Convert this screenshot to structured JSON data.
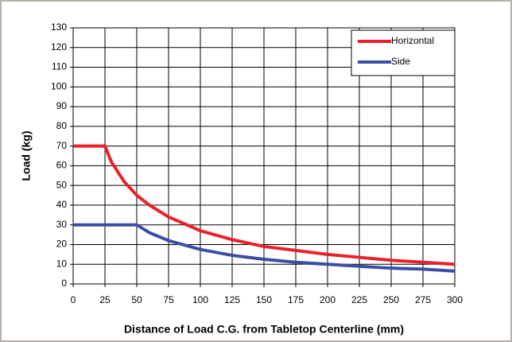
{
  "chart_data": {
    "type": "line",
    "xlabel": "Distance of Load C.G. from Tabletop Centerline (mm)",
    "ylabel": "Load (kg)",
    "xlim": [
      0,
      300
    ],
    "xticks": [
      0,
      25,
      50,
      75,
      100,
      125,
      150,
      175,
      200,
      225,
      250,
      275,
      300
    ],
    "ylim": [
      0,
      130
    ],
    "yticks": [
      0,
      10,
      20,
      30,
      40,
      50,
      60,
      70,
      80,
      90,
      100,
      110,
      120,
      130
    ],
    "grid": true,
    "legend": "upper right",
    "series": [
      {
        "name": "Horizontal",
        "color": "#e8212b",
        "x": [
          0,
          25,
          30,
          40,
          50,
          60,
          75,
          100,
          125,
          150,
          175,
          200,
          225,
          250,
          275,
          300
        ],
        "values": [
          70,
          70,
          62,
          52,
          45,
          40,
          34,
          27,
          22.5,
          19,
          17,
          15,
          13.5,
          12,
          11,
          10
        ]
      },
      {
        "name": "Side",
        "color": "#3b4ea3",
        "x": [
          0,
          50,
          60,
          75,
          100,
          125,
          150,
          175,
          200,
          225,
          250,
          275,
          300
        ],
        "values": [
          30,
          30,
          26,
          22,
          17.5,
          14.5,
          12.5,
          11,
          10,
          9,
          8,
          7.5,
          6.5
        ]
      }
    ]
  }
}
